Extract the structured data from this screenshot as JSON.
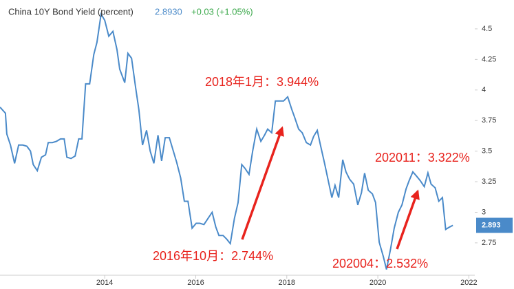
{
  "chart_data": {
    "type": "line",
    "title": "China 10Y Bond Yield (percent)",
    "last_price": "2.8930",
    "change": "+0.03 (+1.05%)",
    "last_value_label": "2.893",
    "color": "#4a8ac9",
    "x": [
      2011.7,
      2011.82,
      2011.85,
      2011.93,
      2012.02,
      2012.11,
      2012.2,
      2012.29,
      2012.37,
      2012.43,
      2012.52,
      2012.61,
      2012.7,
      2012.76,
      2012.85,
      2012.94,
      2013.03,
      2013.11,
      2013.17,
      2013.26,
      2013.35,
      2013.43,
      2013.5,
      2013.58,
      2013.67,
      2013.76,
      2013.83,
      2013.92,
      2014.0,
      2014.09,
      2014.18,
      2014.27,
      2014.33,
      2014.44,
      2014.51,
      2014.59,
      2014.68,
      2014.75,
      2014.83,
      2014.92,
      2015.0,
      2015.08,
      2015.17,
      2015.25,
      2015.33,
      2015.42,
      2015.5,
      2015.58,
      2015.67,
      2015.75,
      2015.83,
      2015.92,
      2016.01,
      2016.09,
      2016.18,
      2016.27,
      2016.36,
      2016.44,
      2016.51,
      2016.6,
      2016.68,
      2016.76,
      2016.85,
      2016.93,
      2017.01,
      2017.08,
      2017.17,
      2017.25,
      2017.34,
      2017.43,
      2017.51,
      2017.58,
      2017.67,
      2017.75,
      2017.84,
      2017.93,
      2018.02,
      2018.11,
      2018.17,
      2018.26,
      2018.34,
      2018.43,
      2018.52,
      2018.59,
      2018.67,
      2018.74,
      2018.83,
      2018.91,
      2018.99,
      2019.06,
      2019.14,
      2019.23,
      2019.3,
      2019.38,
      2019.47,
      2019.56,
      2019.64,
      2019.71,
      2019.79,
      2019.88,
      2019.95,
      2020.03,
      2020.12,
      2020.19,
      2020.28,
      2020.36,
      2020.45,
      2020.53,
      2020.62,
      2020.69,
      2020.77,
      2020.84,
      2020.93,
      2021.02,
      2021.1,
      2021.17,
      2021.26,
      2021.34,
      2021.42,
      2021.49,
      2021.58,
      2021.65
    ],
    "values": [
      3.86,
      3.81,
      3.64,
      3.55,
      3.4,
      3.55,
      3.55,
      3.54,
      3.5,
      3.39,
      3.34,
      3.45,
      3.47,
      3.57,
      3.57,
      3.58,
      3.6,
      3.6,
      3.45,
      3.44,
      3.46,
      3.6,
      3.6,
      4.05,
      4.05,
      4.29,
      4.39,
      4.62,
      4.57,
      4.44,
      4.48,
      4.33,
      4.17,
      4.06,
      4.3,
      4.26,
      4.02,
      3.84,
      3.55,
      3.67,
      3.5,
      3.4,
      3.63,
      3.42,
      3.61,
      3.61,
      3.51,
      3.41,
      3.28,
      3.09,
      3.09,
      2.87,
      2.91,
      2.91,
      2.9,
      2.95,
      3.0,
      2.88,
      2.81,
      2.81,
      2.78,
      2.744,
      2.95,
      3.08,
      3.39,
      3.36,
      3.31,
      3.5,
      3.68,
      3.58,
      3.63,
      3.68,
      3.65,
      3.91,
      3.91,
      3.91,
      3.944,
      3.84,
      3.78,
      3.68,
      3.65,
      3.57,
      3.55,
      3.62,
      3.67,
      3.55,
      3.4,
      3.26,
      3.12,
      3.22,
      3.12,
      3.43,
      3.33,
      3.27,
      3.23,
      3.06,
      3.16,
      3.32,
      3.18,
      3.15,
      3.08,
      2.755,
      2.64,
      2.532,
      2.7,
      2.87,
      3.0,
      3.06,
      3.19,
      3.26,
      3.33,
      3.3,
      3.26,
      3.21,
      3.322,
      3.23,
      3.2,
      3.09,
      3.12,
      2.86,
      2.88,
      2.893
    ],
    "xlim": [
      2011.7,
      2022.13
    ],
    "xticks": [
      2014,
      2016,
      2018,
      2020,
      2022
    ],
    "ylim": [
      2.485,
      4.736
    ],
    "yticks": [
      2.75,
      3,
      3.25,
      3.5,
      3.75,
      4,
      4.25,
      4.5
    ],
    "grid": false,
    "annotations": [
      "2018年1月：3.944%",
      "202011：3.322%",
      "2016年10月：2.744%",
      "202004：2.532%"
    ]
  }
}
